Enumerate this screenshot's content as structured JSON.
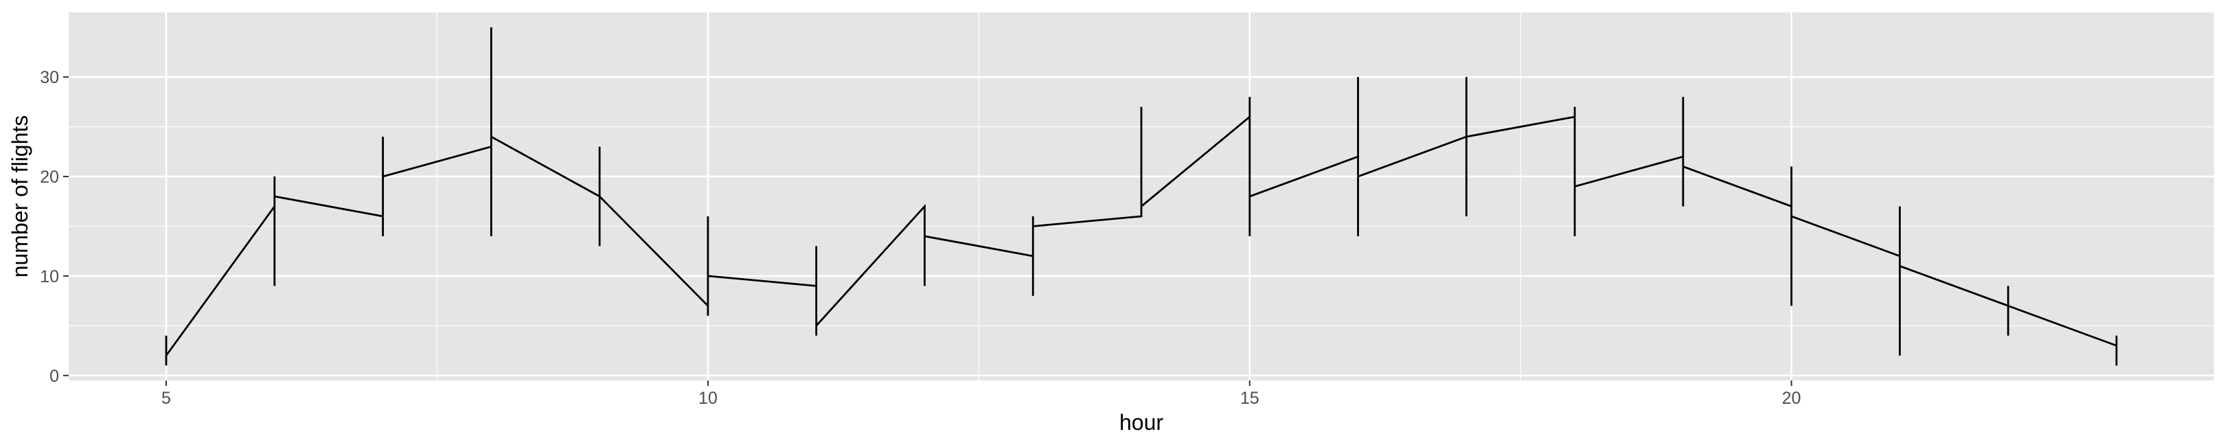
{
  "chart_data": {
    "type": "line",
    "title": "",
    "xlabel": "hour",
    "ylabel": "number of flights",
    "xlim": [
      4.1,
      23.9
    ],
    "ylim": [
      -0.5,
      36.5
    ],
    "x_ticks": [
      5,
      10,
      15,
      20
    ],
    "y_ticks": [
      0,
      10,
      20,
      30
    ],
    "x_tick_labels": [
      "5",
      "10",
      "15",
      "20"
    ],
    "y_tick_labels": [
      "0",
      "10",
      "20",
      "30"
    ],
    "grid": true,
    "legend": "none",
    "colors": {
      "panel": "#e5e5e5",
      "grid": "#ffffff",
      "line": "#000000",
      "tick_text": "#4d4d4d"
    },
    "series": [
      {
        "points": [
          {
            "hour": 5,
            "flights": 1
          },
          {
            "hour": 5,
            "flights": 4
          },
          {
            "hour": 5,
            "flights": 2
          },
          {
            "hour": 6,
            "flights": 17
          },
          {
            "hour": 6,
            "flights": 9
          },
          {
            "hour": 6,
            "flights": 20
          },
          {
            "hour": 6,
            "flights": 18
          },
          {
            "hour": 7,
            "flights": 16
          },
          {
            "hour": 7,
            "flights": 14
          },
          {
            "hour": 7,
            "flights": 24
          },
          {
            "hour": 7,
            "flights": 20
          },
          {
            "hour": 8,
            "flights": 23
          },
          {
            "hour": 8,
            "flights": 14
          },
          {
            "hour": 8,
            "flights": 35
          },
          {
            "hour": 8,
            "flights": 24
          },
          {
            "hour": 9,
            "flights": 18
          },
          {
            "hour": 9,
            "flights": 13
          },
          {
            "hour": 9,
            "flights": 23
          },
          {
            "hour": 9,
            "flights": 18
          },
          {
            "hour": 10,
            "flights": 7
          },
          {
            "hour": 10,
            "flights": 6
          },
          {
            "hour": 10,
            "flights": 16
          },
          {
            "hour": 10,
            "flights": 10
          },
          {
            "hour": 11,
            "flights": 9
          },
          {
            "hour": 11,
            "flights": 13
          },
          {
            "hour": 11,
            "flights": 4
          },
          {
            "hour": 11,
            "flights": 5
          },
          {
            "hour": 12,
            "flights": 17
          },
          {
            "hour": 12,
            "flights": 9
          },
          {
            "hour": 12,
            "flights": 14
          },
          {
            "hour": 13,
            "flights": 12
          },
          {
            "hour": 13,
            "flights": 8
          },
          {
            "hour": 13,
            "flights": 16
          },
          {
            "hour": 13,
            "flights": 15
          },
          {
            "hour": 14,
            "flights": 16
          },
          {
            "hour": 14,
            "flights": 27
          },
          {
            "hour": 14,
            "flights": 17
          },
          {
            "hour": 15,
            "flights": 26
          },
          {
            "hour": 15,
            "flights": 28
          },
          {
            "hour": 15,
            "flights": 14
          },
          {
            "hour": 15,
            "flights": 18
          },
          {
            "hour": 16,
            "flights": 22
          },
          {
            "hour": 16,
            "flights": 14
          },
          {
            "hour": 16,
            "flights": 30
          },
          {
            "hour": 16,
            "flights": 20
          },
          {
            "hour": 17,
            "flights": 24
          },
          {
            "hour": 17,
            "flights": 16
          },
          {
            "hour": 17,
            "flights": 30
          },
          {
            "hour": 17,
            "flights": 24
          },
          {
            "hour": 18,
            "flights": 26
          },
          {
            "hour": 18,
            "flights": 27
          },
          {
            "hour": 18,
            "flights": 14
          },
          {
            "hour": 18,
            "flights": 19
          },
          {
            "hour": 19,
            "flights": 22
          },
          {
            "hour": 19,
            "flights": 28
          },
          {
            "hour": 19,
            "flights": 17
          },
          {
            "hour": 19,
            "flights": 21
          },
          {
            "hour": 20,
            "flights": 17
          },
          {
            "hour": 20,
            "flights": 21
          },
          {
            "hour": 20,
            "flights": 7
          },
          {
            "hour": 20,
            "flights": 16
          },
          {
            "hour": 21,
            "flights": 12
          },
          {
            "hour": 21,
            "flights": 17
          },
          {
            "hour": 21,
            "flights": 2
          },
          {
            "hour": 21,
            "flights": 11
          },
          {
            "hour": 22,
            "flights": 7
          },
          {
            "hour": 22,
            "flights": 9
          },
          {
            "hour": 22,
            "flights": 4
          },
          {
            "hour": 22,
            "flights": 7
          },
          {
            "hour": 23,
            "flights": 3
          },
          {
            "hour": 23,
            "flights": 4
          },
          {
            "hour": 23,
            "flights": 1
          }
        ]
      }
    ]
  }
}
